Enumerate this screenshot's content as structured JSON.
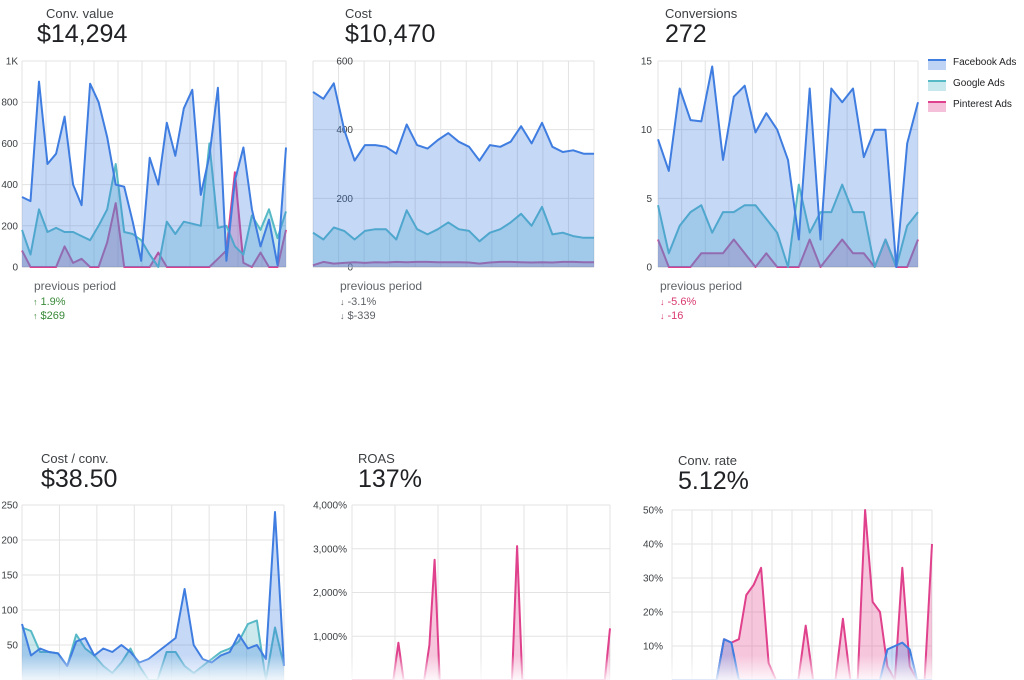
{
  "colors": {
    "facebook": "#3f7de0",
    "google": "#57b9c6",
    "pinterest": "#e0418c",
    "positive": "#3a8a3a",
    "negative": "#d93a70"
  },
  "legend": {
    "items": [
      {
        "label": "Facebook Ads",
        "series": "facebook"
      },
      {
        "label": "Google Ads",
        "series": "google"
      },
      {
        "label": "Pinterest Ads",
        "series": "pinterest"
      }
    ]
  },
  "cards": [
    {
      "label": "Conv. value",
      "value": "$14,294",
      "prev_label": "previous period",
      "deltas": [
        {
          "text": "1.9%",
          "dir": "up"
        },
        {
          "text": "$269",
          "dir": "up"
        }
      ]
    },
    {
      "label": "Cost",
      "value": "$10,470",
      "prev_label": "previous period",
      "deltas": [
        {
          "text": "-3.1%",
          "dir": "down",
          "muted": true
        },
        {
          "text": "$-339",
          "dir": "down",
          "muted": true
        }
      ]
    },
    {
      "label": "Conversions",
      "value": "272",
      "prev_label": "previous period",
      "deltas": [
        {
          "text": "-5.6%",
          "dir": "down"
        },
        {
          "text": "-16",
          "dir": "down"
        }
      ]
    },
    {
      "label": "Cost / conv.",
      "value": "$38.50"
    },
    {
      "label": "ROAS",
      "value": "137%"
    },
    {
      "label": "Conv. rate",
      "value": "5.12%"
    }
  ],
  "chart_data": [
    {
      "type": "area",
      "title": "Conv. value",
      "ylim": [
        0,
        1000
      ],
      "yticks": [
        0,
        200,
        400,
        600,
        800,
        1000
      ],
      "ytick_labels": [
        "0",
        "200",
        "400",
        "600",
        "800",
        "1K"
      ],
      "series": [
        {
          "name": "Pinterest Ads",
          "key": "pinterest",
          "values": [
            80,
            0,
            0,
            0,
            0,
            100,
            20,
            40,
            0,
            0,
            120,
            310,
            0,
            0,
            0,
            0,
            70,
            0,
            0,
            0,
            0,
            0,
            0,
            40,
            80,
            460,
            20,
            0,
            70,
            0,
            0,
            180
          ]
        },
        {
          "name": "Google Ads",
          "key": "google",
          "values": [
            180,
            60,
            280,
            170,
            190,
            170,
            170,
            150,
            130,
            200,
            280,
            500,
            170,
            160,
            130,
            60,
            0,
            220,
            160,
            220,
            210,
            200,
            600,
            190,
            200,
            100,
            60,
            250,
            180,
            280,
            140,
            270
          ]
        },
        {
          "name": "Facebook Ads",
          "key": "facebook",
          "values": [
            340,
            320,
            900,
            500,
            550,
            730,
            400,
            300,
            890,
            800,
            630,
            400,
            390,
            220,
            30,
            530,
            400,
            700,
            540,
            770,
            860,
            350,
            540,
            870,
            30,
            420,
            580,
            280,
            100,
            230,
            10,
            580
          ]
        }
      ]
    },
    {
      "type": "area",
      "title": "Cost",
      "ylim": [
        0,
        600
      ],
      "yticks": [
        0,
        200,
        400,
        600
      ],
      "ytick_labels": [
        "0",
        "200",
        "400",
        "600"
      ],
      "series": [
        {
          "name": "Pinterest Ads",
          "key": "pinterest",
          "values": [
            5,
            15,
            10,
            12,
            14,
            12,
            14,
            13,
            15,
            14,
            15,
            15,
            14,
            14,
            14,
            13,
            10,
            13,
            15,
            15,
            14,
            13,
            14,
            13,
            15,
            15,
            14,
            14
          ]
        },
        {
          "name": "Google Ads",
          "key": "google",
          "values": [
            100,
            80,
            115,
            105,
            80,
            105,
            110,
            110,
            80,
            165,
            110,
            95,
            110,
            130,
            110,
            105,
            75,
            100,
            110,
            130,
            155,
            120,
            175,
            95,
            100,
            90,
            85,
            85
          ]
        },
        {
          "name": "Facebook Ads",
          "key": "facebook",
          "values": [
            510,
            490,
            535,
            400,
            310,
            355,
            355,
            350,
            330,
            415,
            355,
            345,
            370,
            390,
            365,
            350,
            310,
            355,
            350,
            365,
            410,
            360,
            420,
            350,
            335,
            340,
            330,
            330
          ]
        }
      ]
    },
    {
      "type": "area",
      "title": "Conversions",
      "ylim": [
        0,
        15
      ],
      "yticks": [
        0,
        5,
        10,
        15
      ],
      "ytick_labels": [
        "0",
        "5",
        "10",
        "15"
      ],
      "series": [
        {
          "name": "Pinterest Ads",
          "key": "pinterest",
          "values": [
            2,
            0,
            0,
            0,
            1,
            1,
            1,
            2,
            1,
            0,
            1,
            0,
            0,
            0,
            2,
            0,
            1,
            2,
            1,
            1,
            0,
            2,
            0,
            0,
            2
          ]
        },
        {
          "name": "Google Ads",
          "key": "google",
          "values": [
            4.5,
            1,
            3,
            4,
            4.5,
            2.5,
            4,
            4,
            4.5,
            4.5,
            3.5,
            2.5,
            0,
            6,
            2.5,
            4,
            4,
            6,
            4,
            4,
            0,
            2,
            0,
            3,
            4
          ]
        },
        {
          "name": "Facebook Ads",
          "key": "facebook",
          "values": [
            9.3,
            7,
            13,
            10.7,
            10.6,
            14.6,
            7.8,
            12.4,
            13.2,
            9.8,
            11.2,
            10,
            7.8,
            2,
            13,
            2,
            13,
            12,
            13,
            8,
            10,
            10,
            0,
            9,
            12
          ]
        }
      ]
    },
    {
      "type": "area",
      "title": "Cost / conv.",
      "ylim": [
        0,
        250
      ],
      "yticks": [
        50,
        100,
        150,
        200,
        250
      ],
      "ytick_labels": [
        "50",
        "100",
        "150",
        "200",
        "250"
      ],
      "series": [
        {
          "name": "Google Ads",
          "key": "google",
          "values": [
            75,
            70,
            40,
            40,
            38,
            20,
            65,
            45,
            35,
            20,
            10,
            25,
            45,
            20,
            0,
            0,
            40,
            40,
            20,
            10,
            20,
            30,
            40,
            45,
            55,
            80,
            85,
            0,
            75,
            20
          ]
        },
        {
          "name": "Facebook Ads",
          "key": "facebook",
          "values": [
            80,
            35,
            45,
            40,
            38,
            20,
            55,
            60,
            35,
            45,
            40,
            50,
            40,
            25,
            30,
            40,
            50,
            60,
            130,
            50,
            30,
            25,
            35,
            40,
            65,
            45,
            50,
            30,
            240,
            20
          ]
        }
      ]
    },
    {
      "type": "area",
      "title": "ROAS",
      "ylim": [
        0,
        4000
      ],
      "yticks": [
        1000,
        2000,
        3000,
        4000
      ],
      "ytick_labels": [
        "1,000%",
        "2,000%",
        "3,000%",
        "4,000%"
      ],
      "series": [
        {
          "name": "Pinterest Ads",
          "key": "pinterest",
          "values": [
            0,
            0,
            0,
            0,
            0,
            0,
            0,
            0,
            0,
            850,
            0,
            0,
            0,
            0,
            0,
            800,
            2750,
            0,
            0,
            0,
            0,
            0,
            0,
            0,
            0,
            0,
            0,
            0,
            0,
            0,
            0,
            0,
            3060,
            0,
            0,
            0,
            0,
            0,
            0,
            0,
            0,
            0,
            0,
            0,
            0,
            0,
            0,
            0,
            0,
            0,
            1180
          ]
        }
      ]
    },
    {
      "type": "area",
      "title": "Conv. rate",
      "ylim": [
        0,
        50
      ],
      "yticks": [
        10,
        20,
        30,
        40,
        50
      ],
      "ytick_labels": [
        "10%",
        "20%",
        "30%",
        "40%",
        "50%"
      ],
      "series": [
        {
          "name": "Pinterest Ads",
          "key": "pinterest",
          "values": [
            0,
            0,
            0,
            0,
            0,
            0,
            0,
            12,
            11,
            12,
            25,
            28,
            33,
            5,
            0,
            0,
            0,
            0,
            16,
            0,
            0,
            0,
            0,
            18,
            0,
            0,
            50,
            23,
            20,
            4,
            0,
            33,
            4,
            0,
            0,
            40
          ]
        },
        {
          "name": "Facebook Ads",
          "key": "facebook",
          "values": [
            0,
            0,
            0,
            0,
            0,
            0,
            0,
            12,
            11,
            0,
            0,
            0,
            0,
            0,
            0,
            0,
            0,
            0,
            0,
            0,
            0,
            0,
            0,
            0,
            0,
            0,
            0,
            0,
            0,
            9,
            10,
            11,
            9,
            0,
            0,
            0
          ]
        }
      ]
    }
  ]
}
